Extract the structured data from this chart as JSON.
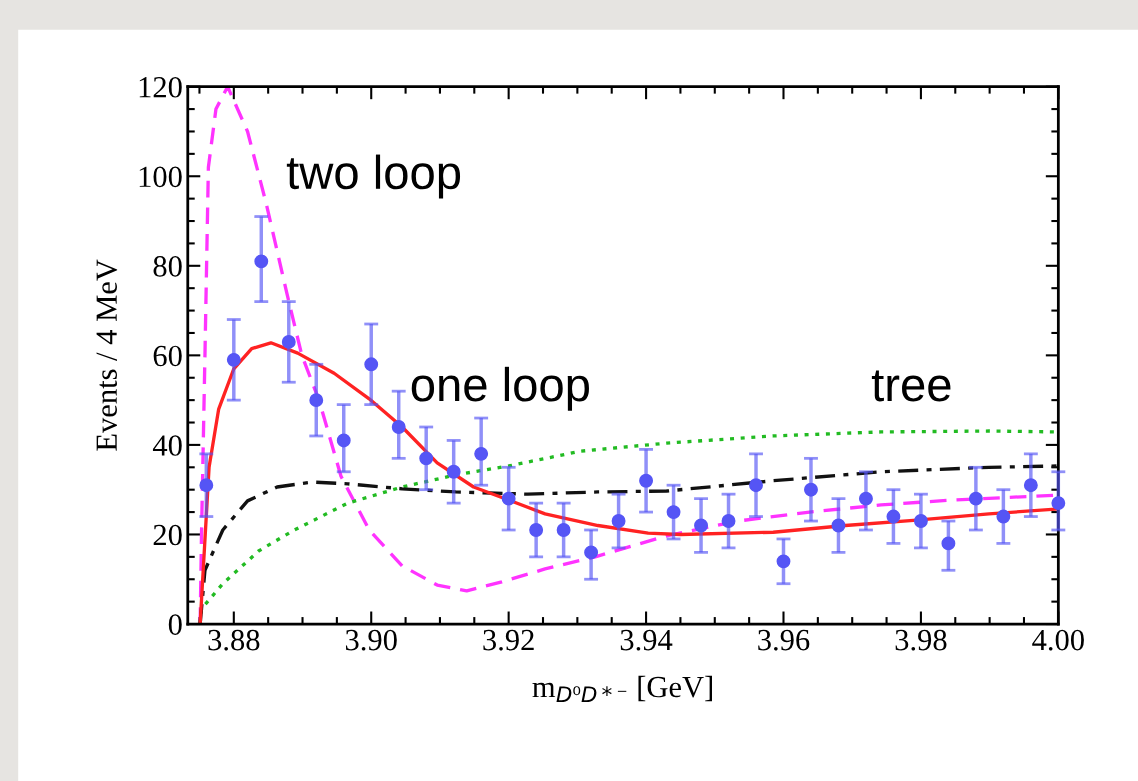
{
  "chart_data": {
    "type": "scatter",
    "xlabel": "m$_{D⁰D*⁻}$ [GeV]",
    "ylabel": "Events / 4 MeV",
    "xlim": [
      3.8733,
      4.0
    ],
    "xticks": [
      {
        "value": 3.88,
        "label": "3.88"
      },
      {
        "value": 3.9,
        "label": "3.90"
      },
      {
        "value": 3.92,
        "label": "3.92"
      },
      {
        "value": 3.94,
        "label": "3.94"
      },
      {
        "value": 3.96,
        "label": "3.96"
      },
      {
        "value": 3.98,
        "label": "3.98"
      },
      {
        "value": 4.0,
        "label": "4.00"
      }
    ],
    "ylim": [
      0,
      120
    ],
    "yticks": [
      0,
      20,
      40,
      60,
      80,
      100,
      120
    ],
    "grid": false,
    "legend": false,
    "annotations": [
      "two loop",
      "one loop",
      "tree"
    ],
    "series": [
      {
        "type": "line",
        "color": "#ff33ff",
        "line_style": "dashed",
        "x": [
          3.8751,
          3.8753,
          3.8758,
          3.8763,
          3.8774,
          3.8791,
          3.882,
          3.8847,
          3.8877,
          3.8899,
          3.8924,
          3.8956,
          3.8997,
          3.9045,
          3.9096,
          3.9139,
          3.919,
          3.9253,
          3.9326,
          3.943,
          3.9534,
          3.9638,
          3.9742,
          3.9847,
          4.0
        ],
        "values": [
          0,
          20,
          60,
          102,
          115,
          120,
          110,
          94,
          74,
          60,
          50,
          33,
          21,
          13,
          8.7,
          7.4,
          9.4,
          12.3,
          15,
          19.7,
          23,
          25,
          26.6,
          27.7,
          28.8
        ]
      },
      {
        "type": "line",
        "color": "#22bb22",
        "line_style": "dotted",
        "x": [
          3.8751,
          3.8753,
          3.8784,
          3.8836,
          3.8888,
          3.8966,
          3.9045,
          3.9123,
          3.92,
          3.9305,
          3.943,
          3.9585,
          3.9742,
          3.9899,
          4.0
        ],
        "values": [
          0,
          3.4,
          9,
          16.3,
          21,
          27,
          30.6,
          33.3,
          35.3,
          38.6,
          40.4,
          42,
          42.9,
          43.1,
          42.9
        ]
      },
      {
        "type": "line",
        "color": "#111111",
        "line_style": "dashdot",
        "x": [
          3.8751,
          3.8758,
          3.8784,
          3.882,
          3.8863,
          3.8914,
          3.8966,
          3.9045,
          3.9123,
          3.9228,
          3.933,
          3.943,
          3.9585,
          3.9742,
          3.9899,
          4.0
        ],
        "values": [
          0,
          12,
          21,
          27.5,
          30.6,
          31.7,
          31.3,
          30.2,
          29.5,
          29,
          29.5,
          29.7,
          32,
          34,
          35,
          35.3
        ]
      },
      {
        "type": "line",
        "color": "#ff2222",
        "line_style": "solid",
        "x": [
          3.8751,
          3.8764,
          3.8778,
          3.88,
          3.8826,
          3.8854,
          3.8893,
          3.8946,
          3.8997,
          3.9045,
          3.9096,
          3.9149,
          3.92,
          3.9253,
          3.933,
          3.9403,
          3.945,
          3.9585,
          3.969,
          3.9794,
          3.9899,
          4.0
        ],
        "values": [
          0,
          35,
          48,
          57,
          61.5,
          62.8,
          60.5,
          56,
          50.3,
          44,
          36,
          30.6,
          27.7,
          24.6,
          22,
          20.3,
          20,
          20.5,
          22,
          23.2,
          24.6,
          25.7
        ]
      },
      {
        "color": "#5555f5",
        "marker": "circle",
        "x": [
          3.876,
          3.88,
          3.884,
          3.888,
          3.892,
          3.896,
          3.9,
          3.904,
          3.908,
          3.912,
          3.916,
          3.92,
          3.924,
          3.928,
          3.932,
          3.936,
          3.94,
          3.944,
          3.948,
          3.952,
          3.956,
          3.96,
          3.964,
          3.968,
          3.972,
          3.976,
          3.98,
          3.984,
          3.988,
          3.992,
          3.996,
          4.0
        ],
        "values": [
          31,
          59,
          81,
          63,
          50,
          41,
          58,
          44,
          37,
          34,
          38,
          28,
          21,
          21,
          16,
          23,
          32,
          25,
          22,
          23,
          31,
          14,
          30,
          22,
          28,
          24,
          23,
          18,
          28,
          24,
          31,
          27
        ],
        "errors": [
          [
            24,
            38
          ],
          [
            50,
            68
          ],
          [
            72,
            91
          ],
          [
            54,
            72
          ],
          [
            42,
            58
          ],
          [
            34,
            49
          ],
          [
            49,
            67
          ],
          [
            37,
            52
          ],
          [
            30,
            44
          ],
          [
            27,
            41
          ],
          [
            31,
            46
          ],
          [
            21,
            35
          ],
          [
            15,
            27
          ],
          [
            15,
            27
          ],
          [
            10,
            21
          ],
          [
            17,
            29
          ],
          [
            25,
            39
          ],
          [
            19,
            31
          ],
          [
            16,
            28
          ],
          [
            17,
            29
          ],
          [
            24,
            38
          ],
          [
            9,
            19
          ],
          [
            23,
            37
          ],
          [
            16,
            28
          ],
          [
            21,
            34
          ],
          [
            18,
            30
          ],
          [
            17,
            29
          ],
          [
            12,
            23
          ],
          [
            21,
            35
          ],
          [
            18,
            30
          ],
          [
            24,
            38
          ],
          [
            21,
            34
          ]
        ]
      }
    ]
  }
}
